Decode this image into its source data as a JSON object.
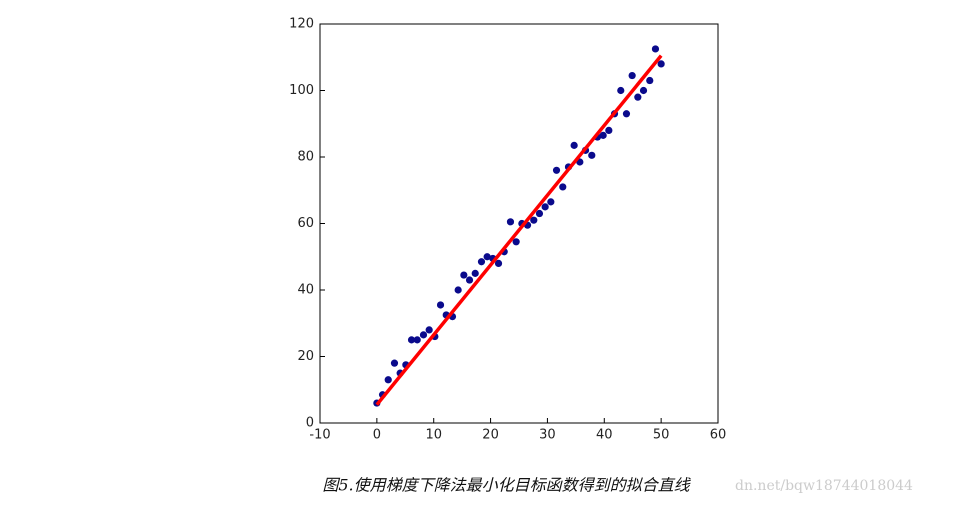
{
  "chart_data": {
    "type": "scatter",
    "xlim": [
      -10,
      60
    ],
    "xticks": [
      -10,
      0,
      10,
      20,
      30,
      40,
      50,
      60
    ],
    "ylim": [
      0,
      120
    ],
    "yticks": [
      0,
      20,
      40,
      60,
      80,
      100,
      120
    ],
    "series": [
      {
        "type": "scatter",
        "color": "#0a0a8c",
        "x": [
          0,
          1,
          2,
          3.1,
          4.1,
          5.1,
          6.1,
          7.1,
          8.2,
          9.2,
          10.2,
          11.2,
          12.2,
          13.3,
          14.3,
          15.3,
          16.3,
          17.3,
          18.4,
          19.4,
          20.4,
          21.4,
          22.4,
          23.5,
          24.5,
          25.5,
          26.5,
          27.6,
          28.6,
          29.6,
          30.6,
          31.6,
          32.7,
          33.7,
          34.7,
          35.7,
          36.7,
          37.8,
          38.8,
          39.8,
          40.8,
          41.8,
          42.9,
          43.9,
          44.9,
          45.9,
          46.9,
          48,
          49,
          50
        ],
        "values": [
          6,
          8.5,
          13,
          18,
          15,
          17.5,
          25,
          25,
          26.5,
          28,
          26,
          35.5,
          32.5,
          32,
          40,
          44.5,
          43,
          45,
          48.5,
          50,
          49.5,
          48,
          51.5,
          60.5,
          54.5,
          60,
          59.5,
          61,
          63,
          65,
          66.5,
          76,
          71,
          77,
          83.5,
          78.5,
          82,
          80.5,
          86,
          86.5,
          88,
          93,
          100,
          93,
          104.5,
          98,
          100,
          103,
          112.5,
          108
        ]
      },
      {
        "type": "line",
        "color": "#ff0000",
        "x": [
          0,
          50
        ],
        "values": [
          5.5,
          110.5
        ]
      }
    ]
  },
  "caption": "图5.使用梯度下降法最小化目标函数得到的拟合直线",
  "watermark": "dn.net/bqw18744018044"
}
